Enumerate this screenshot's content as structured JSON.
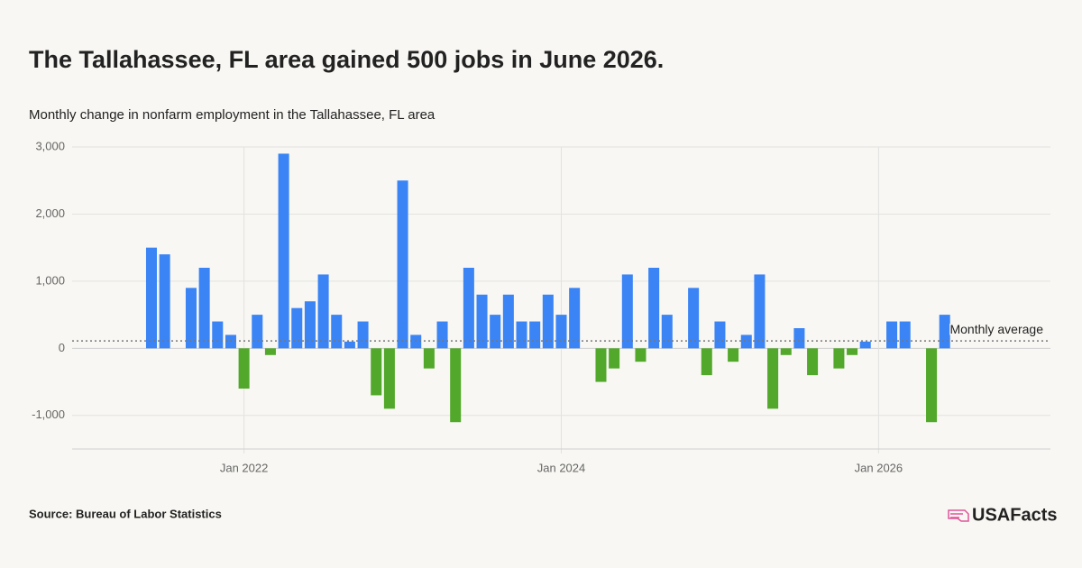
{
  "chart_data": {
    "type": "bar",
    "title": "The Tallahassee, FL area gained 500 jobs in June 2026.",
    "subtitle": "Monthly change in nonfarm employment in the Tallahassee, FL area",
    "source": "Source: Bureau of Labor Statistics",
    "brand": "USAFacts",
    "x": [
      "2021-06",
      "2021-07",
      "2021-08",
      "2021-09",
      "2021-10",
      "2021-11",
      "2021-12",
      "2022-01",
      "2022-02",
      "2022-03",
      "2022-04",
      "2022-05",
      "2022-06",
      "2022-07",
      "2022-08",
      "2022-09",
      "2022-10",
      "2022-11",
      "2022-12",
      "2023-01",
      "2023-02",
      "2023-03",
      "2023-04",
      "2023-05",
      "2023-06",
      "2023-07",
      "2023-08",
      "2023-09",
      "2023-10",
      "2023-11",
      "2023-12",
      "2024-01",
      "2024-02",
      "2024-03",
      "2024-04",
      "2024-05",
      "2024-06",
      "2024-07",
      "2024-08",
      "2024-09",
      "2024-10",
      "2024-11",
      "2024-12",
      "2025-01",
      "2025-02",
      "2025-03",
      "2025-04",
      "2025-05",
      "2025-06",
      "2025-07",
      "2025-08",
      "2025-09",
      "2025-10",
      "2025-11",
      "2025-12",
      "2026-01",
      "2026-02",
      "2026-03",
      "2026-04",
      "2026-05",
      "2026-06"
    ],
    "values": [
      1500,
      1400,
      0,
      900,
      1200,
      400,
      200,
      -600,
      500,
      -100,
      2900,
      600,
      700,
      1100,
      500,
      100,
      400,
      -700,
      -900,
      2500,
      200,
      -300,
      400,
      -1100,
      1200,
      800,
      500,
      800,
      400,
      400,
      800,
      500,
      900,
      0,
      -500,
      -300,
      1100,
      -200,
      1200,
      500,
      0,
      900,
      -400,
      400,
      -200,
      200,
      1100,
      -900,
      -100,
      300,
      -400,
      0,
      -300,
      -100,
      100,
      0,
      400,
      400,
      0,
      -1100,
      500
    ],
    "positive_color": "#3a84f5",
    "negative_color": "#52a82a",
    "average": {
      "label": "Monthly average",
      "value": 110
    },
    "xlim": [
      "2020-12",
      "2027-02"
    ],
    "xticks": [
      {
        "value": "2022-01",
        "label": "Jan 2022"
      },
      {
        "value": "2024-01",
        "label": "Jan 2024"
      },
      {
        "value": "2026-01",
        "label": "Jan 2026"
      }
    ],
    "ylim": [
      -1500,
      3000
    ],
    "yticks": [
      {
        "value": -1000,
        "label": "-1,000"
      },
      0,
      {
        "value": 1000,
        "label": "1,000"
      },
      {
        "value": 2000,
        "label": "2,000"
      },
      {
        "value": 3000,
        "label": "3,000"
      }
    ],
    "grid": true
  }
}
